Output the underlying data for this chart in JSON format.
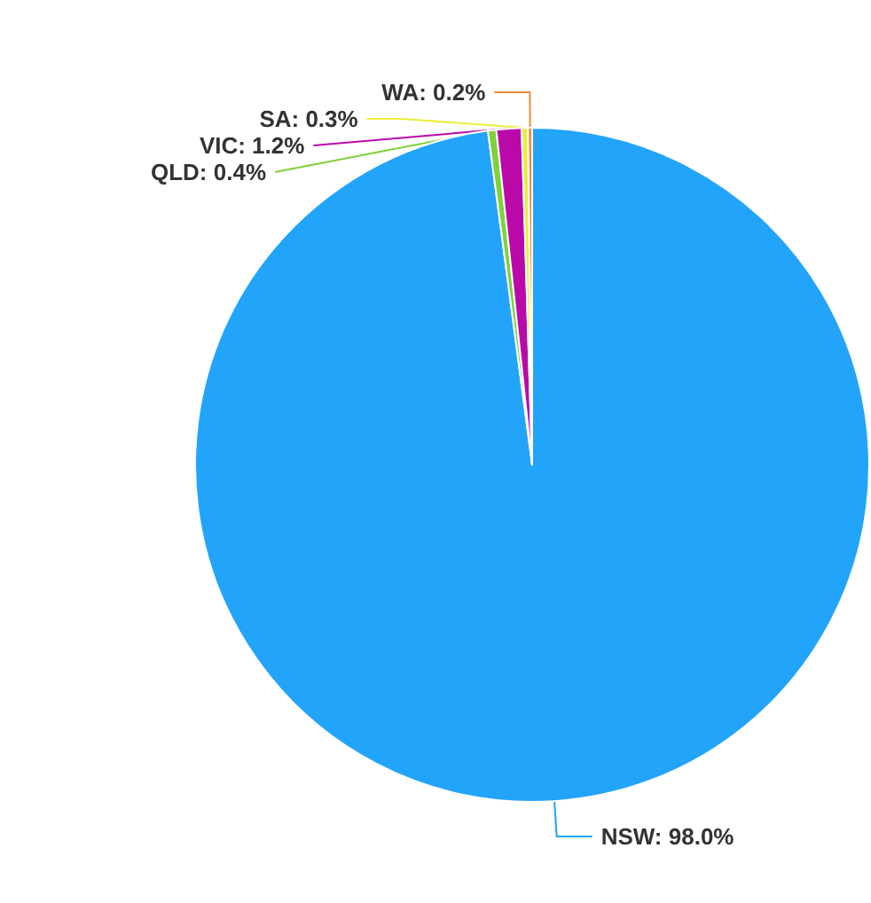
{
  "chart_data": {
    "type": "pie",
    "categories": [
      "NSW",
      "QLD",
      "VIC",
      "SA",
      "WA"
    ],
    "values": [
      98.0,
      0.4,
      1.2,
      0.3,
      0.2
    ],
    "colors": [
      "#22a4fa",
      "#7fd13b",
      "#bb09a9",
      "#eded3a",
      "#f08a3a"
    ],
    "value_labels": [
      "98.0%",
      "0.4%",
      "1.2%",
      "0.3%",
      "0.2%"
    ],
    "legend": false
  }
}
